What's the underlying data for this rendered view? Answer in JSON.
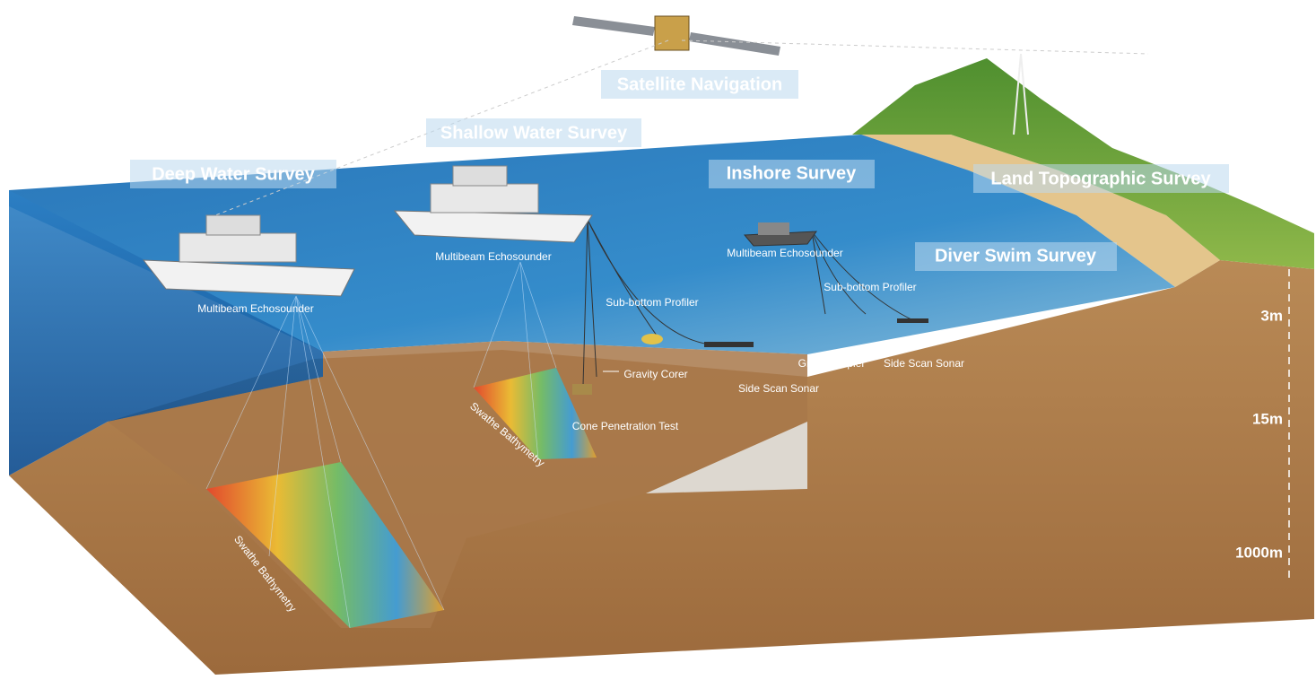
{
  "survey_titles": [
    "Satellite Navigation",
    "Shallow Water Survey",
    "Deep Water Survey",
    "Inshore Survey",
    "Land Topographic Survey",
    "Diver Swim Survey"
  ],
  "equipment_labels": [
    "Multibeam Echosounder",
    "Multibeam Echosounder",
    "Multibeam Echosounder",
    "Sub-bottom Profiler",
    "Sub-bottom Profiler",
    "Gravity Corer",
    "Cone Penetration Test",
    "Side Scan Sonar",
    "Grab Sampler",
    "Side Scan Sonar",
    "Swathe Bathymetry",
    "Swathe Bathymetry"
  ],
  "depth_markers": [
    "3m",
    "15m",
    "1000m"
  ]
}
